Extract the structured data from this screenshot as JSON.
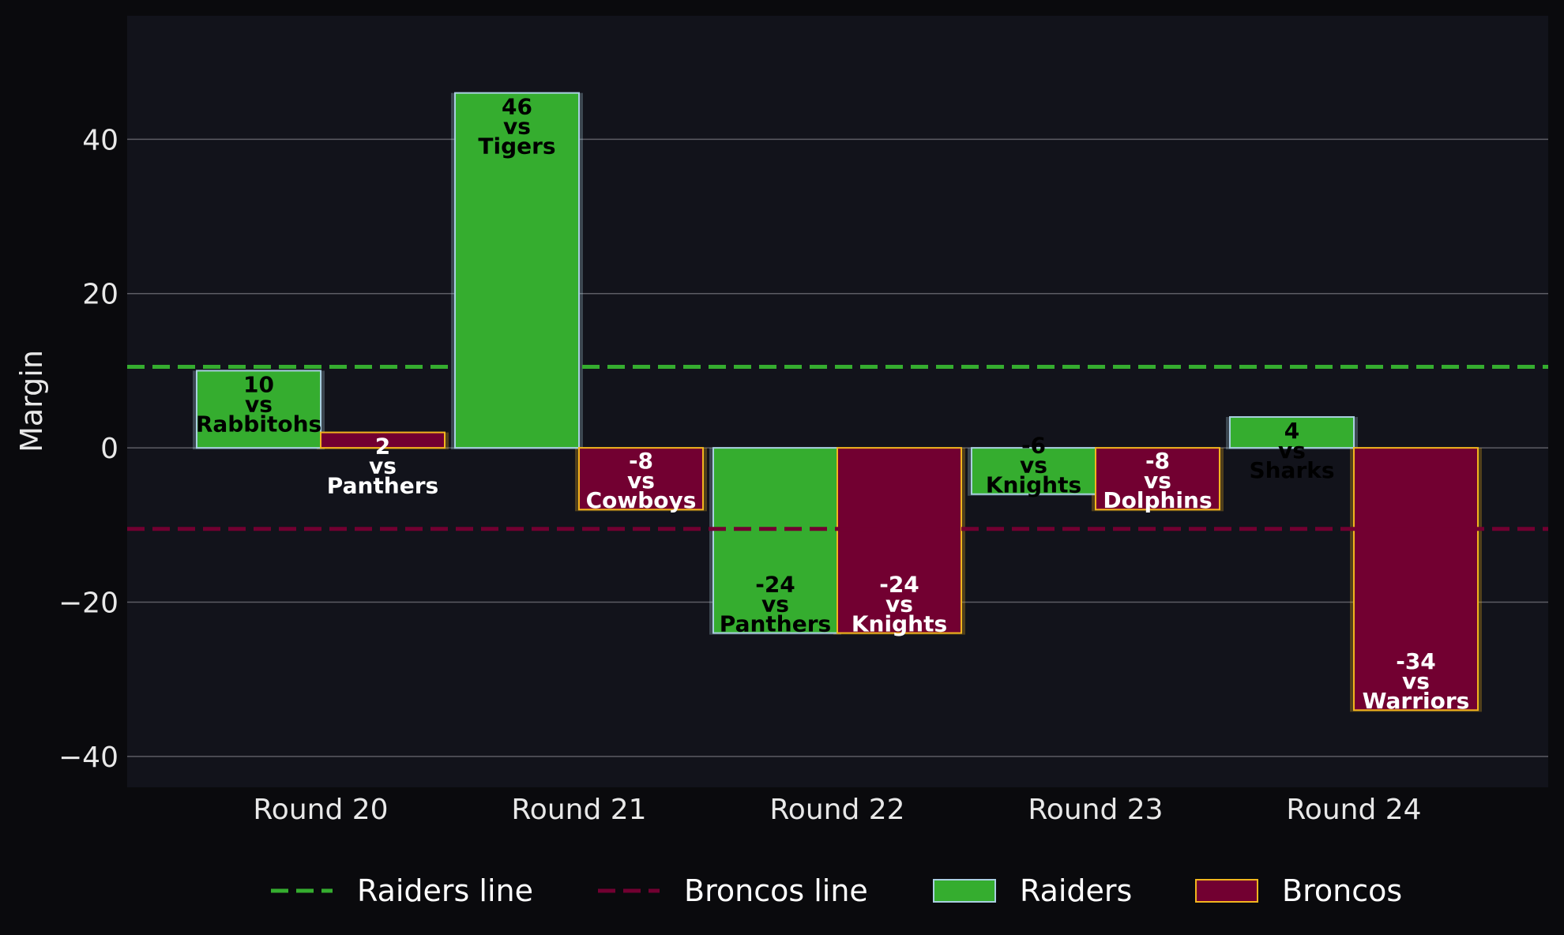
{
  "chart_data": {
    "type": "bar",
    "categories": [
      "Round 20",
      "Round 21",
      "Round 22",
      "Round 23",
      "Round 24"
    ],
    "ylabel": "Margin",
    "xlabel": "",
    "ylim": [
      -44,
      56
    ],
    "yticks": [
      -40,
      -20,
      0,
      20,
      40
    ],
    "ytick_labels": [
      "−40",
      "−20",
      "0",
      "20",
      "40"
    ],
    "grid": "horizontal",
    "legend_position": "bottom",
    "series": [
      {
        "name": "Raiders",
        "color": "#35ad2f",
        "edge_color": "#a9cfe0",
        "label_color": "#000000",
        "values": [
          10,
          46,
          -24,
          -6,
          4
        ],
        "opponents": [
          "Rabbitohs",
          "Tigers",
          "Panthers",
          "Knights",
          "Sharks"
        ],
        "labels": [
          "10\nvs\nRabbitohs",
          "46\nvs\nTigers",
          "-24\nvs\nPanthers",
          "-6\nvs\nKnights",
          "4\nvs\nSharks"
        ]
      },
      {
        "name": "Broncos",
        "color": "#720031",
        "edge_color": "#f2b51e",
        "label_color": "#ffffff",
        "values": [
          2,
          -8,
          -24,
          -8,
          -34
        ],
        "opponents": [
          "Panthers",
          "Cowboys",
          "Knights",
          "Dolphins",
          "Warriors"
        ],
        "labels": [
          "2\nvs\nPanthers",
          "-8\nvs\nCowboys",
          "-24\nvs\nKnights",
          "-8\nvs\nDolphins",
          "-34\nvs\nWarriors"
        ]
      }
    ],
    "reference_lines": [
      {
        "name": "Raiders line",
        "value": 10.5,
        "color": "#35ad2f",
        "style": "dashed"
      },
      {
        "name": "Broncos line",
        "value": -10.5,
        "color": "#720031",
        "style": "dashed"
      }
    ],
    "legend": [
      "Raiders line",
      "Broncos line",
      "Raiders",
      "Broncos"
    ]
  },
  "colors": {
    "page_background": "#0a0a0d",
    "plot_background": "#12131b",
    "grid": "#5c5c64",
    "text": "#e8e8e8"
  }
}
